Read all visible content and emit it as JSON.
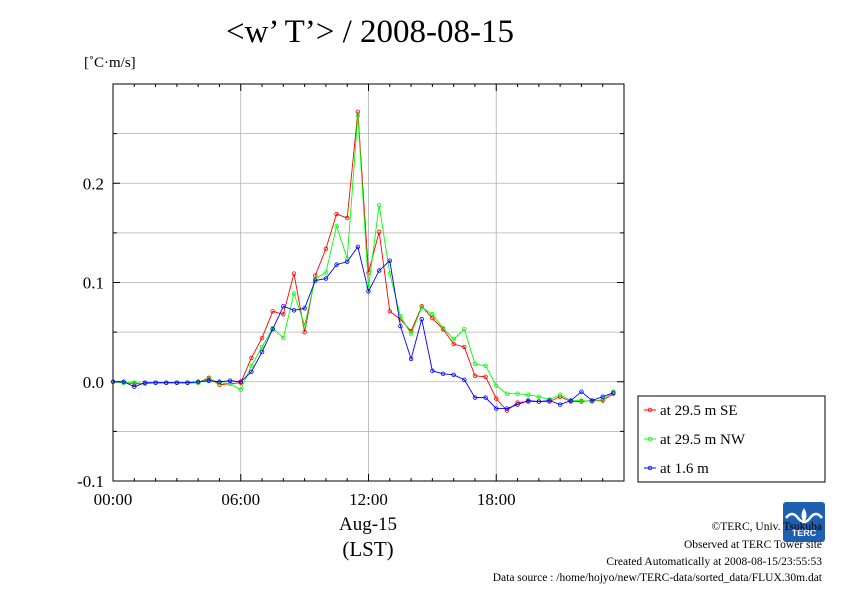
{
  "chart_data": {
    "type": "line",
    "title": "<w’ T’> / 2008-08-15",
    "ylabel": "[˚C·m/s]",
    "xlabel_date": "Aug-15",
    "xlabel_tz": "(LST)",
    "ylim": [
      -0.1,
      0.3
    ],
    "xlim": [
      0,
      24
    ],
    "y_ticks": [
      {
        "value": -0.1,
        "label": "-0.1"
      },
      {
        "value": 0.0,
        "label": "0.0"
      },
      {
        "value": 0.1,
        "label": "0.1"
      },
      {
        "value": 0.2,
        "label": "0.2"
      }
    ],
    "x_ticks": [
      {
        "value": 0,
        "label": "00:00"
      },
      {
        "value": 6,
        "label": "06:00"
      },
      {
        "value": 12,
        "label": "12:00"
      },
      {
        "value": 18,
        "label": "18:00"
      }
    ],
    "grid": true,
    "legend_position": "right",
    "series": [
      {
        "name": "at 29.5 m SE",
        "color": "#ff0000",
        "values": [
          0.0,
          -0.001,
          -0.002,
          -0.002,
          -0.001,
          -0.001,
          -0.001,
          -0.001,
          -0.001,
          0.004,
          -0.003,
          -0.002,
          -0.001,
          0.024,
          0.044,
          0.071,
          0.068,
          0.109,
          0.05,
          0.107,
          0.134,
          0.169,
          0.165,
          0.272,
          0.11,
          0.151,
          0.071,
          0.063,
          0.051,
          0.076,
          0.064,
          0.053,
          0.038,
          0.035,
          0.006,
          0.005,
          -0.017,
          -0.029,
          -0.021,
          -0.02,
          -0.02,
          -0.02,
          -0.015,
          -0.02,
          -0.02,
          -0.019,
          -0.019,
          -0.012
        ]
      },
      {
        "name": "at 29.5 m NW",
        "color": "#00ff00",
        "values": [
          0.0,
          -0.001,
          -0.001,
          -0.002,
          -0.001,
          -0.001,
          -0.001,
          -0.001,
          -0.001,
          0.003,
          -0.001,
          -0.002,
          -0.008,
          0.016,
          0.035,
          0.054,
          0.044,
          0.089,
          0.057,
          0.104,
          0.11,
          0.157,
          0.124,
          0.268,
          0.095,
          0.178,
          0.109,
          0.066,
          0.048,
          0.075,
          0.068,
          0.054,
          0.043,
          0.053,
          0.018,
          0.016,
          -0.004,
          -0.012,
          -0.012,
          -0.013,
          -0.015,
          -0.018,
          -0.013,
          -0.019,
          -0.019,
          -0.02,
          -0.018,
          -0.01
        ]
      },
      {
        "name": "at 1.6 m",
        "color": "#0000ff",
        "values": [
          0.0,
          0.0,
          -0.005,
          -0.001,
          -0.001,
          -0.001,
          -0.001,
          -0.001,
          0.0,
          0.001,
          0.0,
          0.001,
          0.0,
          0.01,
          0.03,
          0.053,
          0.076,
          0.072,
          0.074,
          0.102,
          0.104,
          0.118,
          0.121,
          0.136,
          0.091,
          0.112,
          0.122,
          0.056,
          0.023,
          0.063,
          0.011,
          0.008,
          0.007,
          0.002,
          -0.016,
          -0.016,
          -0.027,
          -0.027,
          -0.023,
          -0.019,
          -0.02,
          -0.019,
          -0.023,
          -0.019,
          -0.01,
          -0.019,
          -0.015,
          -0.011
        ]
      }
    ]
  },
  "credits": {
    "copyright": "©TERC, Univ. Tsukuba",
    "observed": "Observed at TERC Tower site",
    "created": "Created Automatically at 2008-08-15/23:55:53",
    "source": "Data source : /home/hojyo/new/TERC-data/sorted_data/FLUX.30m.dat"
  },
  "logo_text": "TERC"
}
